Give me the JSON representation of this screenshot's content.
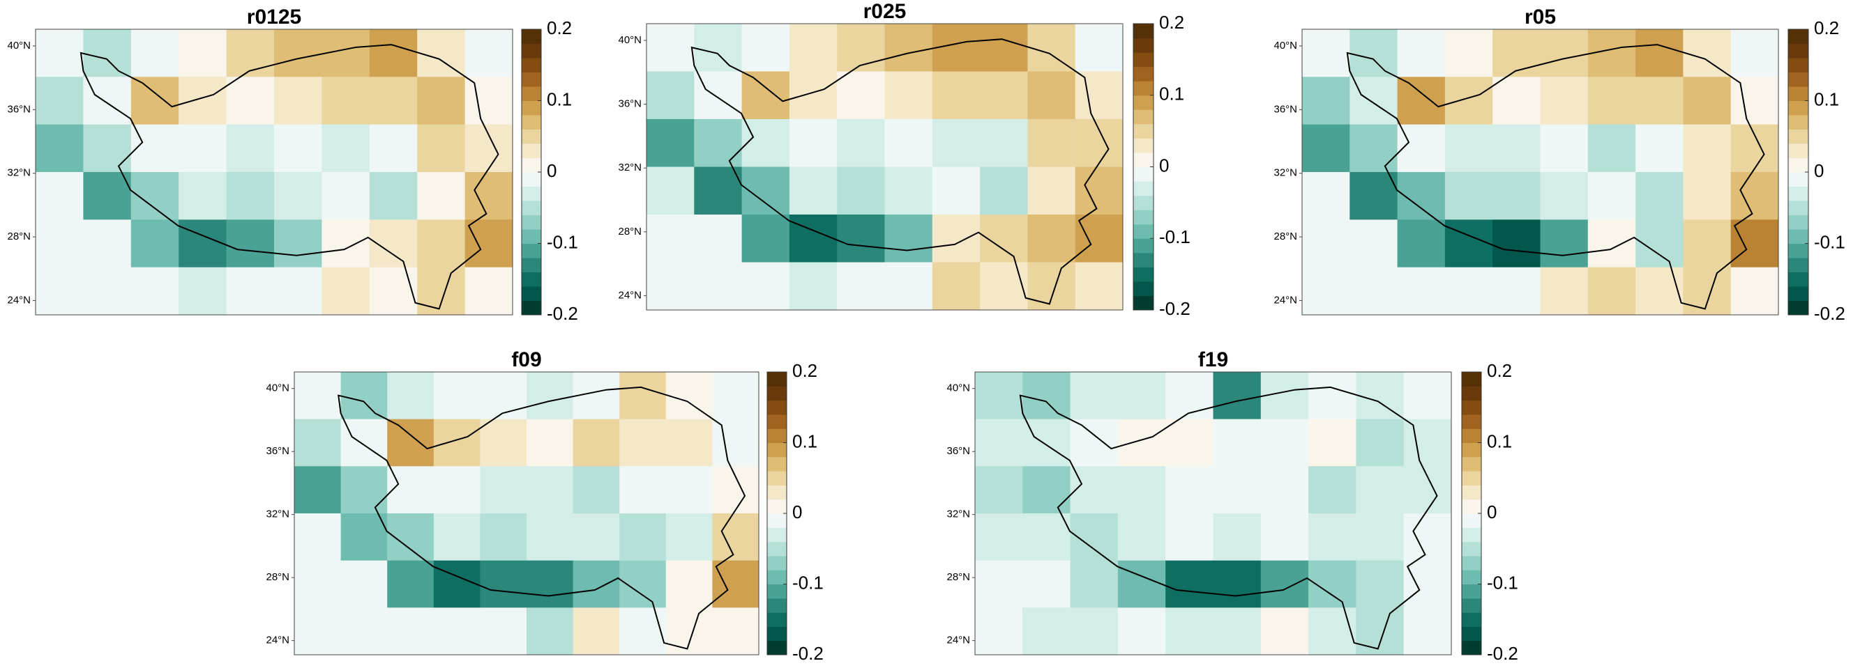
{
  "colorscale": {
    "colors": [
      "#003c30",
      "#01574b",
      "#0f6e62",
      "#2b877a",
      "#4aa294",
      "#6dbcaf",
      "#92d0c5",
      "#b5e0d8",
      "#d3ede8",
      "#eef7f5",
      "#faf5ea",
      "#f4e8c8",
      "#ebd59f",
      "#dfbd75",
      "#cfa050",
      "#ba8233",
      "#a06420",
      "#854c12",
      "#6a3a0a",
      "#543005"
    ]
  },
  "chart_data": [
    {
      "type": "heatmap",
      "title": "r0125",
      "values": [
        [
          -0.02,
          -0.04,
          -0.01,
          0.02,
          0.05,
          0.06,
          0.07,
          0.08,
          0.03,
          -0.01
        ],
        [
          -0.05,
          -0.02,
          0.06,
          0.03,
          0.02,
          0.03,
          0.04,
          0.05,
          0.06,
          0.02
        ],
        [
          -0.1,
          -0.06,
          -0.02,
          -0.02,
          -0.03,
          -0.02,
          -0.03,
          -0.02,
          0.04,
          0.03
        ],
        [
          -0.02,
          -0.12,
          -0.08,
          -0.03,
          -0.04,
          -0.03,
          -0.02,
          -0.04,
          0.02,
          0.06
        ],
        [
          -0.01,
          -0.02,
          -0.1,
          -0.14,
          -0.12,
          -0.08,
          0.02,
          0.03,
          0.05,
          0.08
        ],
        [
          -0.01,
          -0.01,
          -0.02,
          -0.03,
          -0.02,
          -0.01,
          0.03,
          0.02,
          0.04,
          0.02
        ]
      ],
      "ylim": [
        23.1,
        41.05
      ],
      "yticks": [
        {
          "value": 40,
          "label": "40°N"
        },
        {
          "value": 36,
          "label": "36°N"
        },
        {
          "value": 32,
          "label": "32°N"
        },
        {
          "value": 28,
          "label": "28°N"
        },
        {
          "value": 24,
          "label": "24°N"
        }
      ],
      "clim": [
        -0.2,
        0.2
      ],
      "cticks": [
        0.2,
        0.1,
        0,
        -0.1,
        -0.2
      ]
    },
    {
      "type": "heatmap",
      "title": "r025",
      "values": [
        [
          -0.02,
          -0.03,
          -0.01,
          0.03,
          0.05,
          0.07,
          0.08,
          0.09,
          0.04,
          -0.01
        ],
        [
          -0.06,
          -0.02,
          0.07,
          0.03,
          0.02,
          0.03,
          0.05,
          0.05,
          0.06,
          0.03
        ],
        [
          -0.12,
          -0.07,
          -0.03,
          -0.02,
          -0.03,
          -0.02,
          -0.03,
          -0.03,
          0.04,
          0.04
        ],
        [
          -0.03,
          -0.13,
          -0.09,
          -0.03,
          -0.05,
          -0.03,
          -0.02,
          -0.05,
          0.03,
          0.07
        ],
        [
          -0.01,
          -0.02,
          -0.12,
          -0.15,
          -0.14,
          -0.09,
          0.03,
          0.04,
          0.06,
          0.09
        ],
        [
          -0.01,
          -0.01,
          -0.02,
          -0.03,
          -0.02,
          -0.01,
          0.04,
          0.03,
          0.05,
          0.03
        ]
      ],
      "ylim": [
        23.1,
        41.05
      ],
      "yticks": [
        {
          "value": 40,
          "label": "40°N"
        },
        {
          "value": 36,
          "label": "36°N"
        },
        {
          "value": 32,
          "label": "32°N"
        },
        {
          "value": 28,
          "label": "28°N"
        },
        {
          "value": 24,
          "label": "24°N"
        }
      ],
      "clim": [
        -0.2,
        0.2
      ],
      "cticks": [
        0.2,
        0.1,
        0,
        -0.1,
        -0.2
      ]
    },
    {
      "type": "heatmap",
      "title": "r05",
      "values": [
        [
          -0.01,
          -0.06,
          -0.02,
          0.01,
          0.04,
          0.05,
          0.06,
          0.09,
          0.03,
          -0.01
        ],
        [
          -0.08,
          -0.03,
          0.08,
          0.04,
          0.02,
          0.03,
          0.05,
          0.04,
          0.07,
          0.02
        ],
        [
          -0.12,
          -0.08,
          -0.02,
          -0.03,
          -0.03,
          -0.02,
          -0.04,
          -0.02,
          0.03,
          0.04
        ],
        [
          -0.02,
          -0.14,
          -0.1,
          -0.04,
          -0.05,
          -0.03,
          -0.02,
          -0.05,
          0.03,
          0.07
        ],
        [
          -0.01,
          -0.02,
          -0.12,
          -0.16,
          -0.17,
          -0.12,
          0.02,
          -0.06,
          0.05,
          0.1
        ],
        [
          -0.01,
          -0.01,
          -0.02,
          -0.02,
          -0.02,
          0.03,
          0.04,
          0.03,
          0.04,
          0.02
        ]
      ],
      "ylim": [
        23.1,
        41.05
      ],
      "yticks": [
        {
          "value": 40,
          "label": "40°N"
        },
        {
          "value": 36,
          "label": "36°N"
        },
        {
          "value": 32,
          "label": "32°N"
        },
        {
          "value": 28,
          "label": "28°N"
        },
        {
          "value": 24,
          "label": "24°N"
        }
      ],
      "clim": [
        -0.2,
        0.2
      ],
      "cticks": [
        0.2,
        0.1,
        0,
        -0.1,
        -0.2
      ]
    },
    {
      "type": "heatmap",
      "title": "f09",
      "values": [
        [
          -0.02,
          -0.07,
          -0.03,
          -0.02,
          -0.02,
          -0.03,
          -0.02,
          0.04,
          0.02,
          -0.02
        ],
        [
          -0.04,
          -0.02,
          0.09,
          0.05,
          0.03,
          0.01,
          0.04,
          0.03,
          0.03,
          -0.01
        ],
        [
          -0.11,
          -0.07,
          -0.02,
          -0.02,
          -0.03,
          -0.03,
          -0.04,
          -0.02,
          -0.02,
          0.02
        ],
        [
          -0.02,
          -0.09,
          -0.08,
          -0.03,
          -0.04,
          -0.03,
          -0.03,
          -0.05,
          -0.03,
          0.04
        ],
        [
          -0.01,
          -0.02,
          -0.11,
          -0.15,
          -0.13,
          -0.14,
          -0.1,
          -0.08,
          0.02,
          0.08
        ],
        [
          -0.02,
          -0.01,
          -0.02,
          -0.01,
          -0.02,
          -0.04,
          0.03,
          -0.02,
          0.02,
          0.02
        ]
      ],
      "ylim": [
        23.1,
        41.05
      ],
      "yticks": [
        {
          "value": 40,
          "label": "40°N"
        },
        {
          "value": 36,
          "label": "36°N"
        },
        {
          "value": 32,
          "label": "32°N"
        },
        {
          "value": 28,
          "label": "28°N"
        },
        {
          "value": 24,
          "label": "24°N"
        }
      ],
      "clim": [
        -0.2,
        0.2
      ],
      "cticks": [
        0.2,
        0.1,
        0,
        -0.1,
        -0.2
      ]
    },
    {
      "type": "heatmap",
      "title": "f19",
      "values": [
        [
          -0.04,
          -0.08,
          -0.03,
          -0.03,
          -0.02,
          -0.14,
          -0.03,
          -0.02,
          -0.03,
          -0.02
        ],
        [
          -0.03,
          -0.03,
          -0.02,
          0.02,
          0.02,
          -0.02,
          -0.02,
          0.02,
          -0.05,
          -0.03
        ],
        [
          -0.06,
          -0.07,
          -0.03,
          -0.03,
          -0.02,
          -0.02,
          -0.01,
          -0.05,
          -0.03,
          -0.03
        ],
        [
          -0.03,
          -0.03,
          -0.05,
          -0.03,
          -0.02,
          -0.03,
          -0.02,
          -0.03,
          -0.03,
          -0.02
        ],
        [
          -0.02,
          -0.01,
          -0.06,
          -0.1,
          -0.16,
          -0.16,
          -0.12,
          -0.08,
          -0.06,
          -0.02
        ],
        [
          -0.02,
          -0.03,
          -0.03,
          -0.02,
          -0.03,
          -0.03,
          0.02,
          -0.03,
          -0.05,
          -0.02
        ]
      ],
      "ylim": [
        23.1,
        41.05
      ],
      "yticks": [
        {
          "value": 40,
          "label": "40°N"
        },
        {
          "value": 36,
          "label": "36°N"
        },
        {
          "value": 32,
          "label": "32°N"
        },
        {
          "value": 28,
          "label": "28°N"
        },
        {
          "value": 24,
          "label": "24°N"
        }
      ],
      "clim": [
        -0.2,
        0.2
      ],
      "cticks": [
        0.2,
        0.1,
        0,
        -0.1,
        -0.2
      ]
    }
  ]
}
